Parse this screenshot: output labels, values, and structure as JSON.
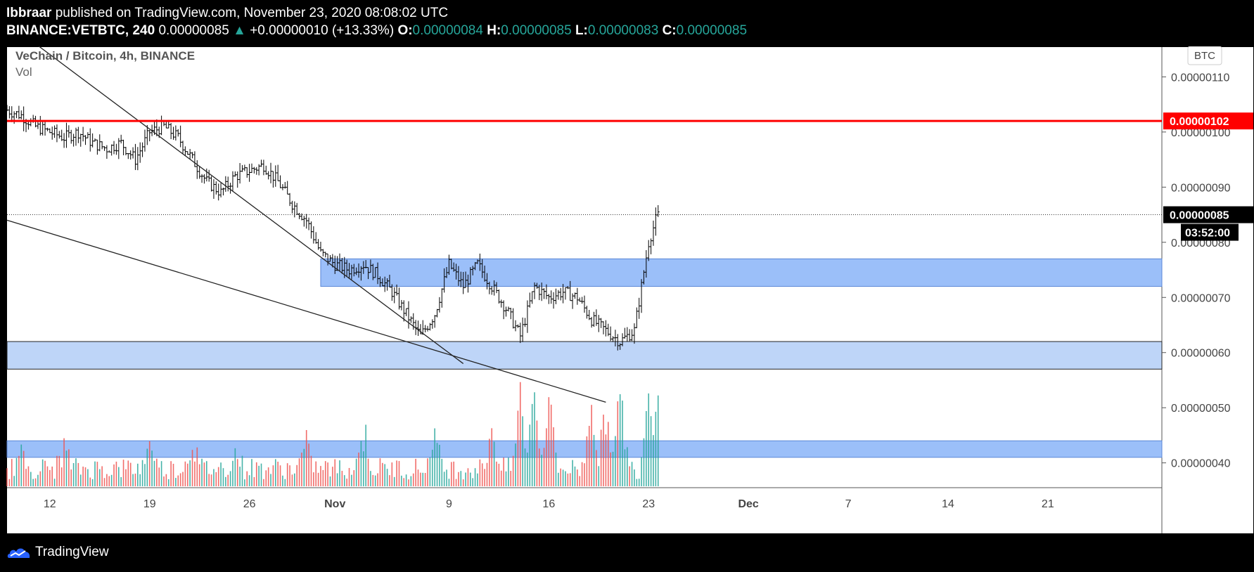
{
  "header": {
    "author": "Ibbraar",
    "published_text": "published on TradingView.com, November 23, 2020 08:08:02 UTC",
    "symbol": "BINANCE:VETBTC, 240",
    "last_price": "0.00000085",
    "change": "+0.00000010 (+13.33%)",
    "o_label": "O:",
    "o_value": "0.00000084",
    "h_label": "H:",
    "h_value": "0.00000085",
    "l_label": "L:",
    "l_value": "0.00000083",
    "c_label": "C:",
    "c_value": "0.00000085"
  },
  "legend": {
    "title": "VeChain / Bitcoin, 4h, BINANCE",
    "vol_label": "Vol"
  },
  "currency_badge": "BTC",
  "footer": {
    "brand": "TradingView"
  },
  "colors": {
    "up": "#26a69a",
    "down": "#ef5350",
    "resistance": "#ff0000",
    "zone_blue": "#8ab4f8",
    "zone_light": "#bbd3f8"
  },
  "chart_data": {
    "type": "candlestick",
    "title": "VeChain / Bitcoin, 4h, BINANCE",
    "y_axis": {
      "ticks": [
        "0.00000110",
        "0.00000100",
        "0.00000090",
        "0.00000080",
        "0.00000070",
        "0.00000060",
        "0.00000050",
        "0.00000040"
      ],
      "tick_values": [
        110,
        100,
        90,
        80,
        70,
        60,
        50,
        40
      ],
      "range": [
        35.5,
        115.4
      ],
      "unit": "1e-8 BTC"
    },
    "x_axis": {
      "labels": [
        "12",
        "19",
        "26",
        "Nov",
        "9",
        "16",
        "23",
        "Dec",
        "7",
        "14",
        "21"
      ],
      "label_days": [
        0,
        7,
        14,
        20,
        28,
        35,
        42,
        49,
        56,
        63,
        70
      ],
      "range_days": [
        -3,
        78
      ],
      "note": "days offset from Oct 12 2020"
    },
    "price_path": [
      [
        -3,
        104
      ],
      [
        -2,
        103
      ],
      [
        -1,
        101
      ],
      [
        0,
        100
      ],
      [
        1,
        99
      ],
      [
        2,
        100
      ],
      [
        3,
        98
      ],
      [
        4,
        97
      ],
      [
        5,
        98
      ],
      [
        6,
        95
      ],
      [
        7,
        100
      ],
      [
        8,
        101
      ],
      [
        9,
        99
      ],
      [
        10,
        95
      ],
      [
        11,
        91
      ],
      [
        12,
        89
      ],
      [
        13,
        92
      ],
      [
        14,
        93
      ],
      [
        15,
        94
      ],
      [
        16,
        91
      ],
      [
        17,
        87
      ],
      [
        18,
        84
      ],
      [
        19,
        78
      ],
      [
        20,
        76
      ],
      [
        21,
        75
      ],
      [
        22,
        76
      ],
      [
        23,
        74
      ],
      [
        24,
        71
      ],
      [
        25,
        67
      ],
      [
        26,
        63
      ],
      [
        27,
        67
      ],
      [
        28,
        76
      ],
      [
        29,
        72
      ],
      [
        30,
        76
      ],
      [
        31,
        72
      ],
      [
        32,
        68
      ],
      [
        33,
        63
      ],
      [
        34,
        72
      ],
      [
        35,
        70
      ],
      [
        36,
        71
      ],
      [
        37,
        70
      ],
      [
        38,
        66
      ],
      [
        39,
        64
      ],
      [
        40,
        62
      ],
      [
        41,
        64
      ],
      [
        42,
        80
      ],
      [
        42.5,
        84
      ],
      [
        42.7,
        85
      ]
    ],
    "last_price": 85,
    "last_price_label": "0.00000085",
    "countdown_label": "03:52:00",
    "resistance": {
      "value": 102,
      "label": "0.00000102"
    },
    "zones": [
      {
        "name": "mid-zone",
        "from_day": 19,
        "low": 72,
        "high": 77
      },
      {
        "name": "support-zone",
        "from_day": -3,
        "low": 57,
        "high": 62
      },
      {
        "name": "volume-zone",
        "from_day": -3,
        "low": 41,
        "high": 44
      }
    ],
    "trendlines": [
      {
        "name": "upper-trendline",
        "from": [
          -1,
          116
        ],
        "to": [
          29,
          58
        ]
      },
      {
        "name": "lower-trendline",
        "from": [
          -3,
          84
        ],
        "to": [
          39,
          51
        ]
      }
    ],
    "volume": {
      "baseline": 36,
      "spikes": [
        [
          -2,
          40
        ],
        [
          1,
          41
        ],
        [
          7,
          42
        ],
        [
          10,
          43
        ],
        [
          13,
          40
        ],
        [
          18,
          42
        ],
        [
          22,
          45
        ],
        [
          27,
          44
        ],
        [
          31,
          45
        ],
        [
          33,
          56
        ],
        [
          34,
          54
        ],
        [
          35,
          53
        ],
        [
          38,
          52
        ],
        [
          39,
          50
        ],
        [
          40,
          56
        ],
        [
          42,
          56
        ],
        [
          42.6,
          54
        ]
      ]
    }
  }
}
